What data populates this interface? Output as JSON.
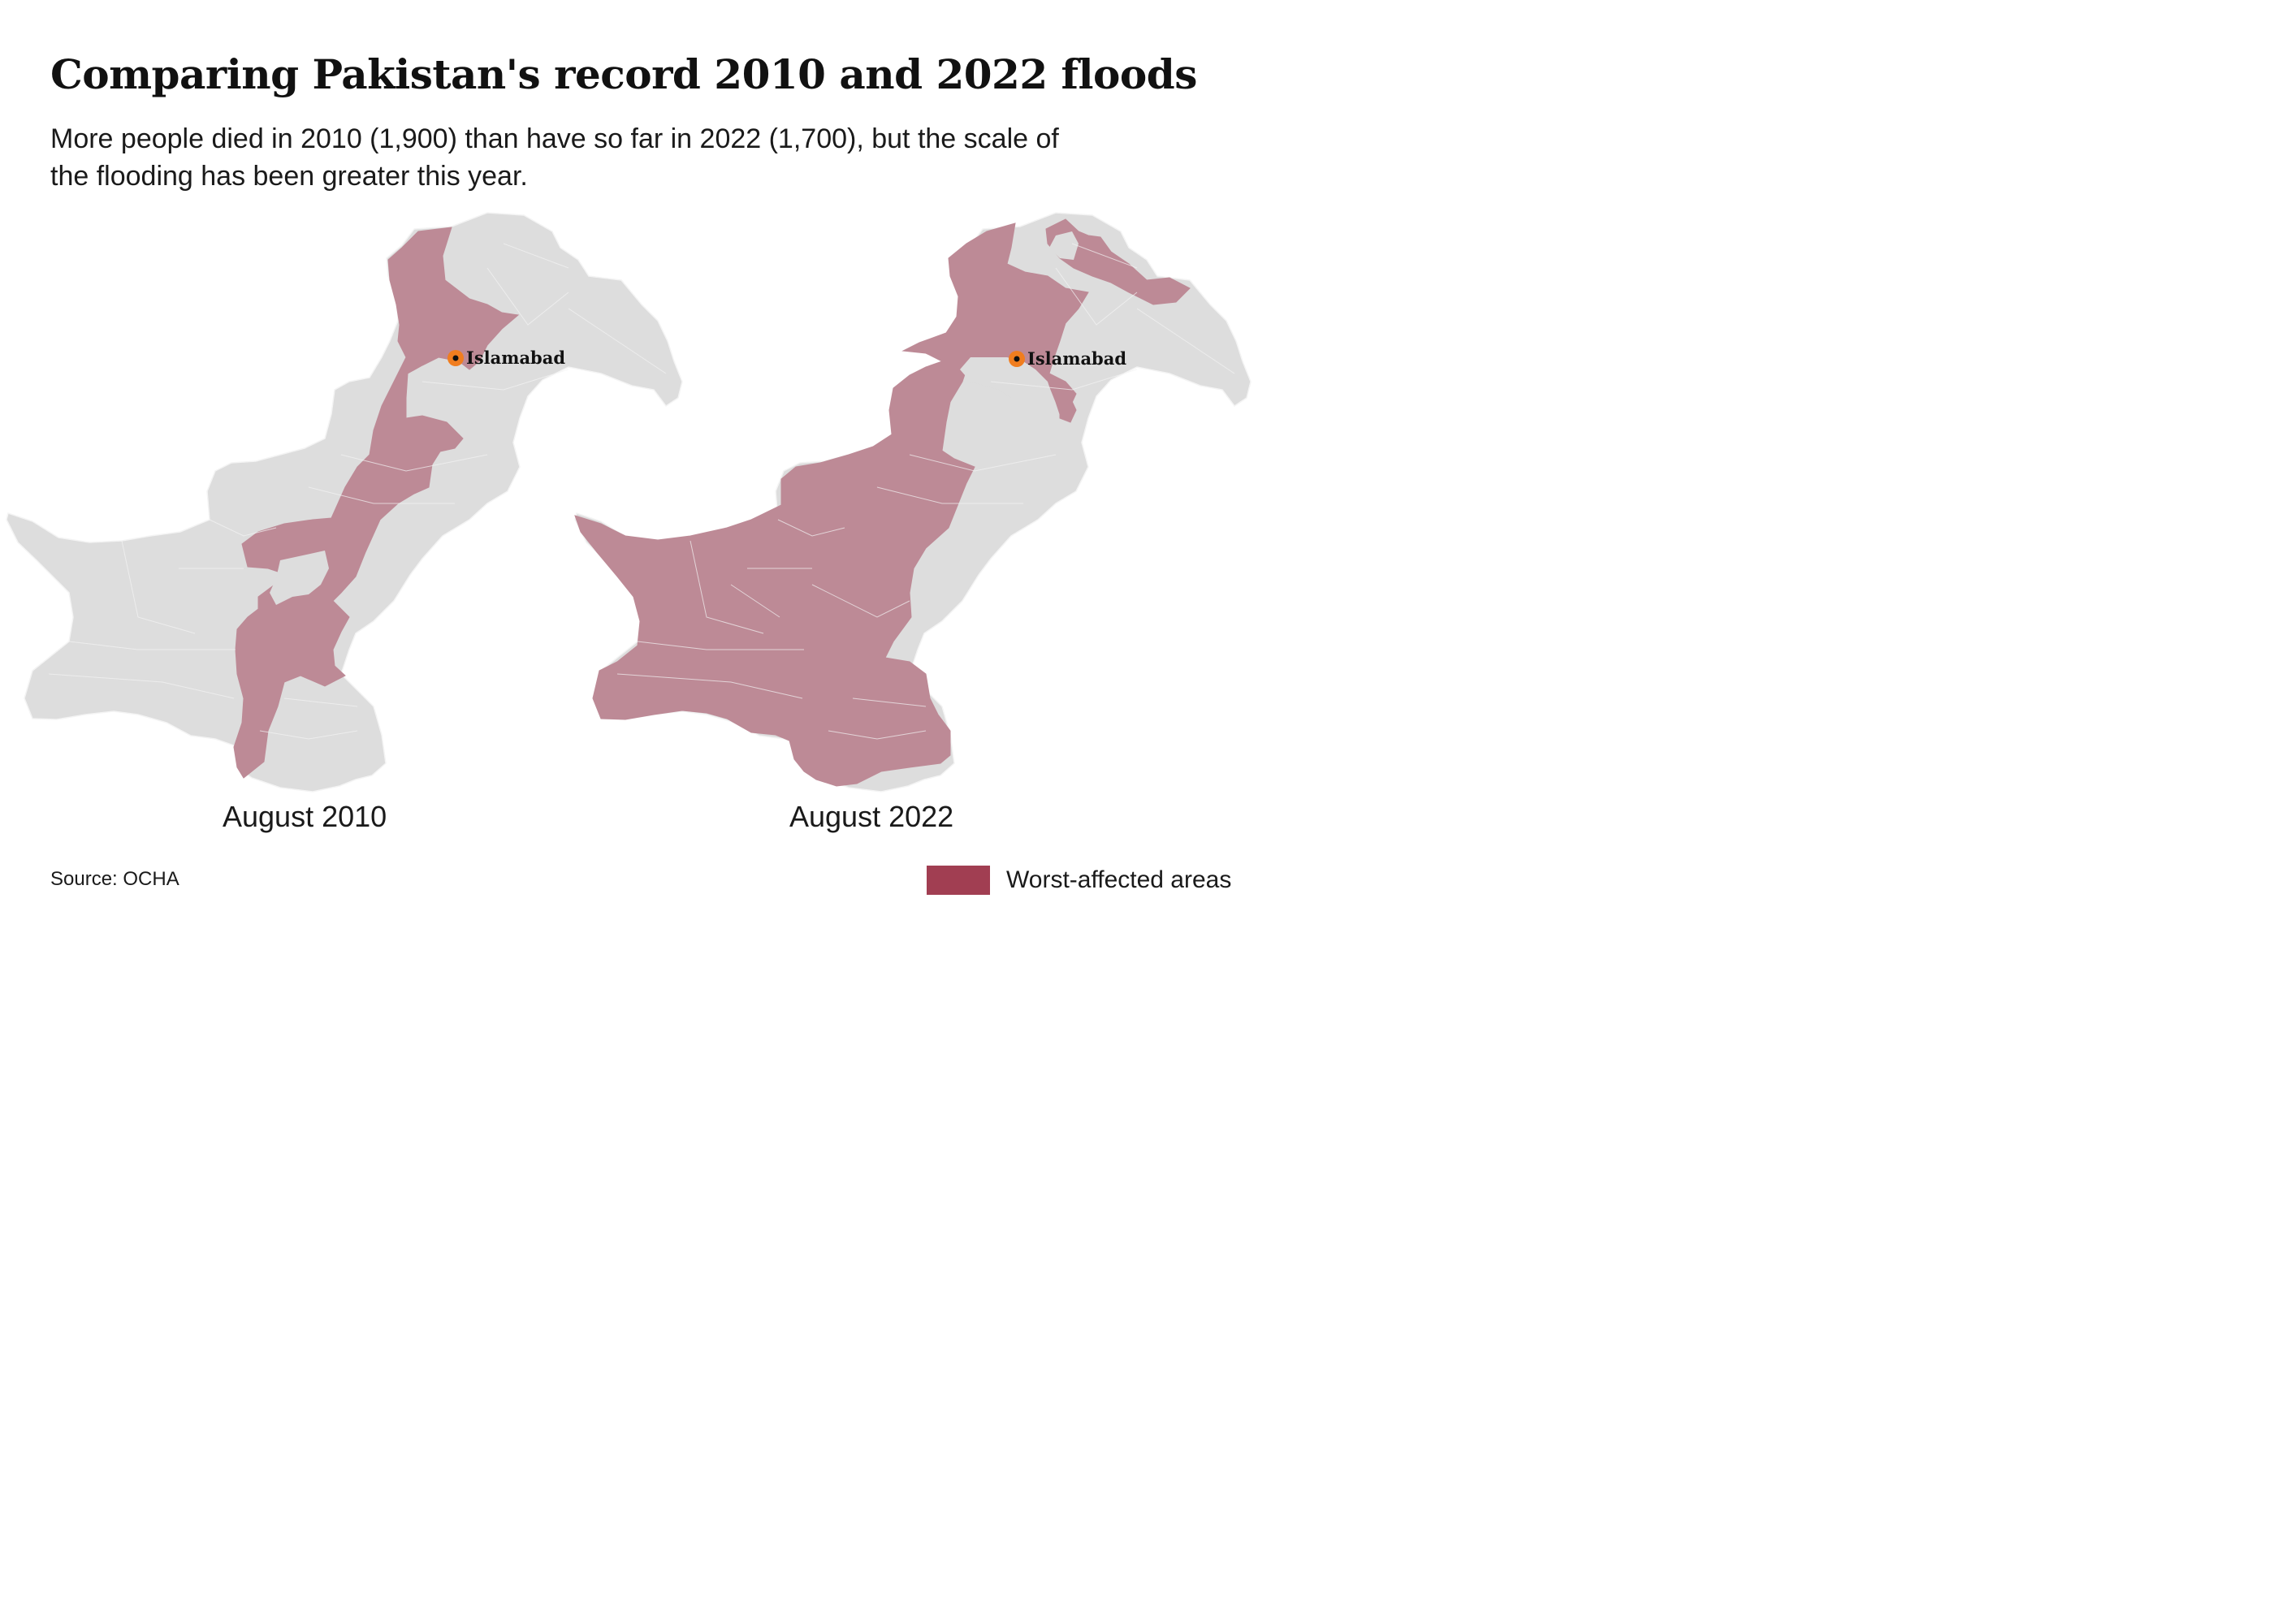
{
  "title": "Comparing Pakistan's record 2010 and 2022 floods",
  "subtitle": "More people died in 2010 (1,900) than have so far in 2022 (1,700), but the scale of the flooding has been greater this year.",
  "colors": {
    "land": "#dddddd",
    "affected": "#bd8a96",
    "legend_swatch": "#a13e52",
    "city_marker": "#f07d1f",
    "borders": "#f4f4f4"
  },
  "maps": [
    {
      "label": "August 2010",
      "city": "Islamabad",
      "city_icon": "city-dot-icon"
    },
    {
      "label": "August 2022",
      "city": "Islamabad",
      "city_icon": "city-dot-icon"
    }
  ],
  "legend": {
    "label": "Worst-affected areas"
  },
  "source": "Source: OCHA"
}
